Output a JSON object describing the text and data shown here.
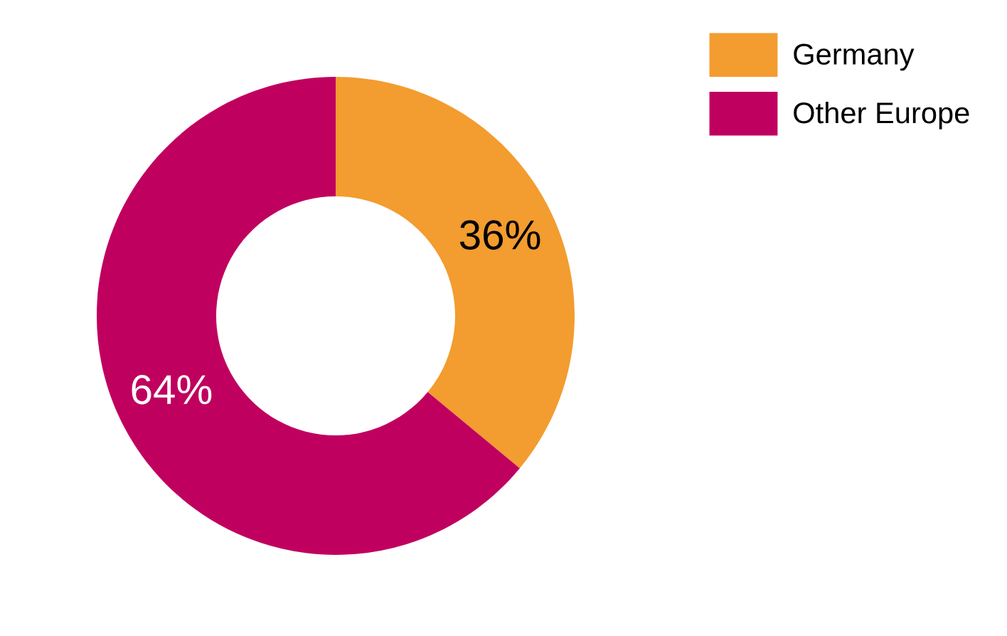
{
  "chart_data": {
    "type": "donut",
    "categories": [
      "Germany",
      "Other Europe"
    ],
    "values": [
      36,
      64
    ],
    "colors": [
      "#f39c2f",
      "#c0005f"
    ],
    "value_labels": [
      "36%",
      "64%"
    ],
    "legend": "top right"
  }
}
